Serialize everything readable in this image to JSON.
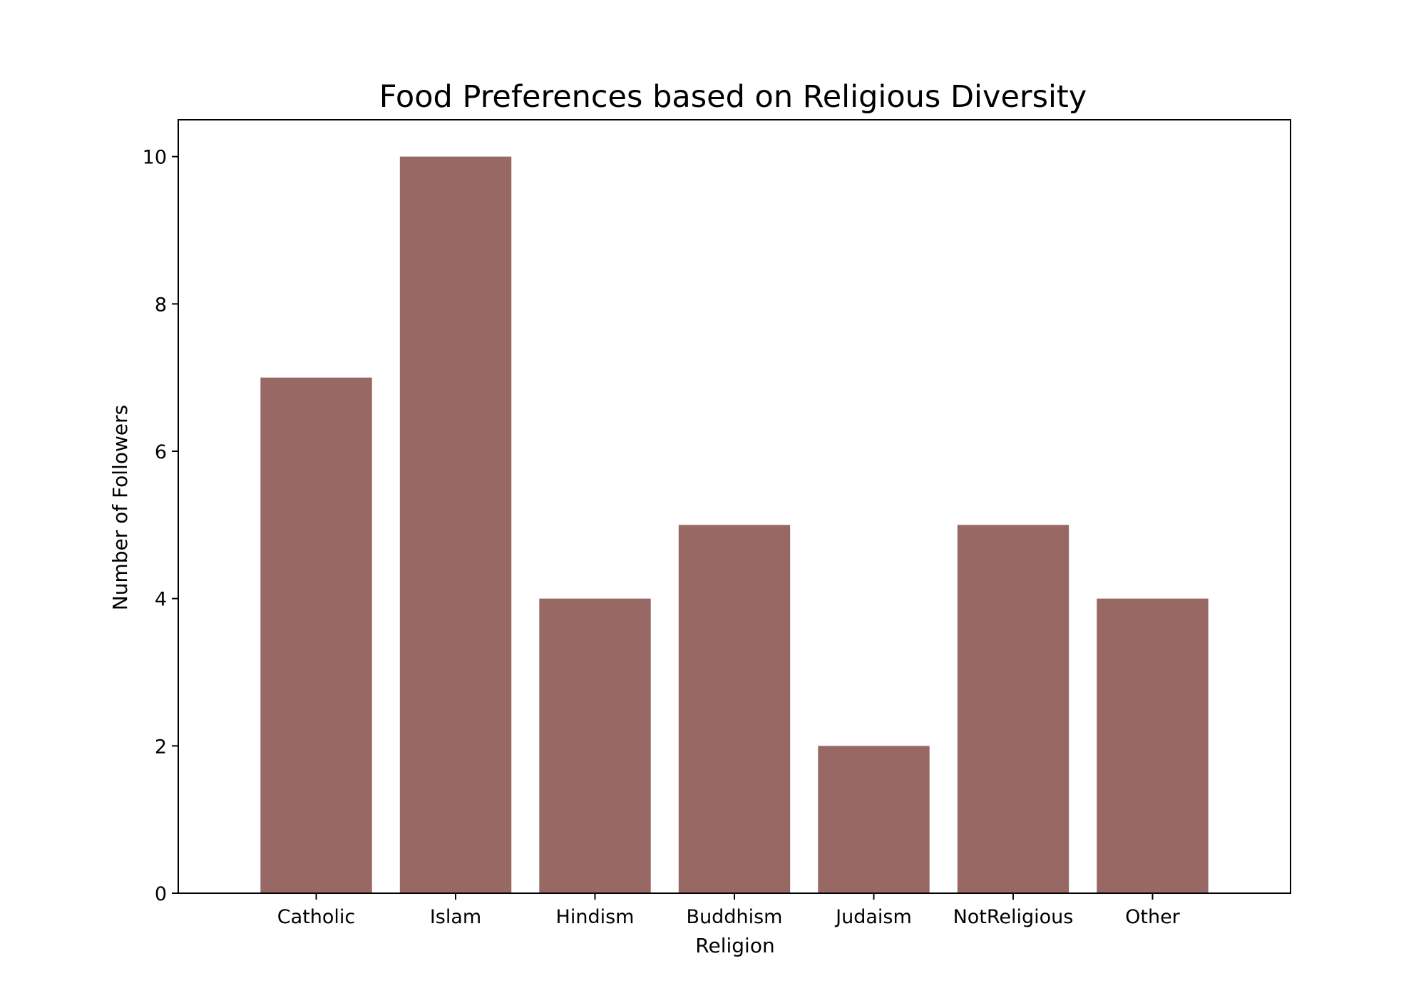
{
  "chart_data": {
    "type": "bar",
    "title": "Food Preferences based on Religious Diversity",
    "xlabel": "Religion",
    "ylabel": "Number of Followers",
    "categories": [
      "Catholic",
      "Islam",
      "Hindism",
      "Buddhism",
      "Judaism",
      "NotReligious",
      "Other"
    ],
    "values": [
      7,
      10,
      4,
      5,
      2,
      5,
      4
    ],
    "ylim": [
      0,
      10.5
    ],
    "yticks": [
      "0",
      "2",
      "4",
      "6",
      "8",
      "10"
    ],
    "bar_color": "#986865",
    "grid": false,
    "legend": "none"
  }
}
